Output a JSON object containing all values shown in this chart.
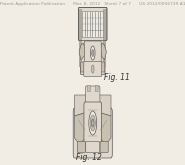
{
  "bg_color": "#f2ede4",
  "line_color": "#555555",
  "fill_light": "#e0d8cc",
  "fill_mid": "#c8c0b0",
  "fill_dark": "#a8a098",
  "fill_white": "#f0ece4",
  "header_text": "Patent Application Publication      Mar. 8, 2012   Sheet 7 of 7      US 2012/0056739 A1",
  "fig11_label": "Fig. 11",
  "fig12_label": "Fig. 12",
  "header_font_size": 3.2,
  "label_font_size": 5.5
}
